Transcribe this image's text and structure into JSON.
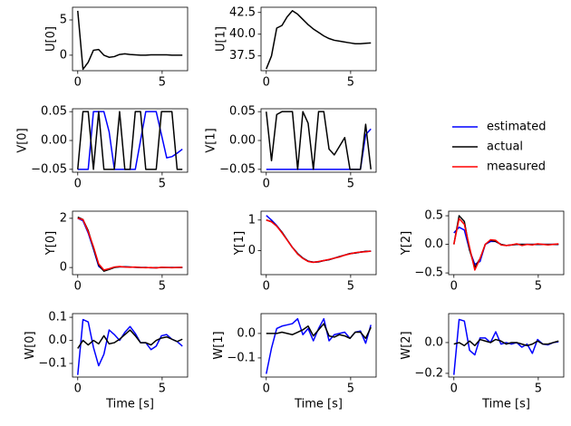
{
  "chart_data": [
    {
      "type": "line",
      "ylabel": "U[0]",
      "x": [
        0,
        0.31,
        0.62,
        0.93,
        1.24,
        1.55,
        1.86,
        2.17,
        2.48,
        2.79,
        3.1,
        3.41,
        3.72,
        4.03,
        4.34,
        4.65,
        4.96,
        5.27,
        5.58,
        5.89,
        6.2
      ],
      "xlim": [
        -0.31,
        6.51
      ],
      "xticks": [
        0,
        5
      ],
      "ylim": [
        -2.2,
        6.8
      ],
      "yticks": [
        0,
        5
      ],
      "series": [
        {
          "name": "actual",
          "color": "#000000",
          "values": [
            6.3,
            -2.0,
            -1.0,
            0.7,
            0.8,
            0.0,
            -0.3,
            -0.2,
            0.1,
            0.2,
            0.1,
            0.05,
            0,
            0,
            0.05,
            0.05,
            0.05,
            0.05,
            0,
            0,
            0
          ]
        }
      ]
    },
    {
      "type": "line",
      "ylabel": "U[1]",
      "x": [
        0,
        0.31,
        0.62,
        0.93,
        1.24,
        1.55,
        1.86,
        2.17,
        2.48,
        2.79,
        3.1,
        3.41,
        3.72,
        4.03,
        4.34,
        4.65,
        4.96,
        5.27,
        5.58,
        5.89,
        6.2
      ],
      "xlim": [
        -0.31,
        6.51
      ],
      "xticks": [
        0,
        5
      ],
      "ylim": [
        35.8,
        43.1
      ],
      "yticks": [
        37.5,
        {
          "value": 40,
          "label": "40.0"
        },
        42.5
      ],
      "series": [
        {
          "name": "actual",
          "color": "#000000",
          "values": [
            36.0,
            37.5,
            40.7,
            41.0,
            42.0,
            42.7,
            42.3,
            41.7,
            41.1,
            40.6,
            40.2,
            39.8,
            39.5,
            39.3,
            39.2,
            39.1,
            39.0,
            38.9,
            38.9,
            38.95,
            39.0
          ]
        }
      ]
    },
    {
      "type": "line",
      "ylabel": "V[0]",
      "x": [
        0,
        0.31,
        0.62,
        0.93,
        1.24,
        1.55,
        1.86,
        2.17,
        2.48,
        2.79,
        3.1,
        3.41,
        3.72,
        4.03,
        4.34,
        4.65,
        4.96,
        5.27,
        5.58,
        5.89,
        6.2
      ],
      "xlim": [
        -0.31,
        6.51
      ],
      "xticks": [
        0,
        5
      ],
      "ylim": [
        -0.055,
        0.055
      ],
      "yticks": [
        {
          "value": -0.05,
          "label": "−0.05"
        },
        {
          "value": 0,
          "label": "0.00"
        },
        {
          "value": 0.05,
          "label": "0.05"
        }
      ],
      "series": [
        {
          "name": "estimated",
          "color": "#0000ff",
          "values": [
            -0.05,
            -0.05,
            -0.05,
            0.05,
            0.05,
            0.05,
            0.015,
            -0.05,
            -0.05,
            -0.05,
            -0.05,
            -0.05,
            0.0,
            0.05,
            0.05,
            0.05,
            0.01,
            -0.03,
            -0.028,
            -0.022,
            -0.015
          ]
        },
        {
          "name": "actual",
          "color": "#000000",
          "values": [
            -0.05,
            0.05,
            0.05,
            -0.05,
            0.05,
            -0.05,
            -0.05,
            -0.05,
            0.05,
            -0.05,
            -0.05,
            0.05,
            0.05,
            -0.05,
            -0.05,
            -0.05,
            0.05,
            0.05,
            0.05,
            -0.05,
            -0.05
          ]
        }
      ]
    },
    {
      "type": "line",
      "ylabel": "V[1]",
      "x": [
        0,
        0.31,
        0.62,
        0.93,
        1.24,
        1.55,
        1.86,
        2.17,
        2.48,
        2.79,
        3.1,
        3.41,
        3.72,
        4.03,
        4.34,
        4.65,
        4.96,
        5.27,
        5.58,
        5.89,
        6.2
      ],
      "xlim": [
        -0.31,
        6.51
      ],
      "xticks": [
        0,
        5
      ],
      "ylim": [
        -0.055,
        0.055
      ],
      "yticks": [
        {
          "value": -0.05,
          "label": "−0.05"
        },
        {
          "value": 0,
          "label": "0.00"
        },
        {
          "value": 0.05,
          "label": "0.05"
        }
      ],
      "series": [
        {
          "name": "estimated",
          "color": "#0000ff",
          "values": [
            -0.05,
            -0.05,
            -0.05,
            -0.05,
            -0.05,
            -0.05,
            -0.05,
            -0.05,
            -0.05,
            -0.05,
            -0.05,
            -0.05,
            -0.05,
            -0.05,
            -0.05,
            -0.05,
            -0.05,
            -0.05,
            -0.05,
            0.01,
            0.02
          ]
        },
        {
          "name": "actual",
          "color": "#000000",
          "values": [
            0.05,
            -0.035,
            0.045,
            0.05,
            0.05,
            0.05,
            -0.05,
            0.05,
            0.03,
            -0.05,
            0.05,
            0.05,
            -0.015,
            -0.025,
            -0.01,
            0.005,
            -0.05,
            -0.05,
            -0.05,
            0.028,
            -0.05
          ]
        }
      ]
    },
    {
      "type": "line",
      "ylabel": "Y[0]",
      "x": [
        0,
        0.31,
        0.62,
        0.93,
        1.24,
        1.55,
        1.86,
        2.17,
        2.48,
        2.79,
        3.1,
        3.41,
        3.72,
        4.03,
        4.34,
        4.65,
        4.96,
        5.27,
        5.58,
        5.89,
        6.2
      ],
      "xlim": [
        -0.31,
        6.51
      ],
      "xticks": [
        0,
        5
      ],
      "ylim": [
        -0.29,
        2.29
      ],
      "yticks": [
        0,
        2
      ],
      "series": [
        {
          "name": "estimated",
          "color": "#0000ff",
          "values": [
            2.0,
            1.9,
            1.4,
            0.75,
            0.05,
            -0.12,
            -0.06,
            0.01,
            0.03,
            0.03,
            0.02,
            0.01,
            0,
            0,
            -0.01,
            -0.01,
            0,
            0,
            0,
            0,
            0
          ]
        },
        {
          "name": "actual",
          "color": "#000000",
          "values": [
            2.05,
            1.95,
            1.5,
            0.8,
            0.1,
            -0.15,
            -0.08,
            0.0,
            0.03,
            0.03,
            0.02,
            0.01,
            0,
            0,
            -0.01,
            -0.01,
            0,
            0,
            0,
            0,
            0
          ]
        },
        {
          "name": "measured",
          "color": "#ff0000",
          "values": [
            2.0,
            1.95,
            1.45,
            0.85,
            0.15,
            -0.1,
            -0.05,
            0.02,
            0.04,
            0.02,
            0.01,
            0.02,
            0,
            -0.01,
            0,
            -0.02,
            0.01,
            0,
            -0.01,
            0,
            0.01
          ]
        }
      ]
    },
    {
      "type": "line",
      "ylabel": "Y[1]",
      "x": [
        0,
        0.31,
        0.62,
        0.93,
        1.24,
        1.55,
        1.86,
        2.17,
        2.48,
        2.79,
        3.1,
        3.41,
        3.72,
        4.03,
        4.34,
        4.65,
        4.96,
        5.27,
        5.58,
        5.89,
        6.2
      ],
      "xlim": [
        -0.31,
        6.51
      ],
      "xticks": [
        0,
        5
      ],
      "ylim": [
        -0.79,
        1.29
      ],
      "yticks": [
        0,
        1
      ],
      "series": [
        {
          "name": "estimated",
          "color": "#0000ff",
          "values": [
            1.15,
            1.0,
            0.82,
            0.6,
            0.35,
            0.1,
            -0.1,
            -0.25,
            -0.35,
            -0.38,
            -0.37,
            -0.33,
            -0.3,
            -0.25,
            -0.2,
            -0.15,
            -0.1,
            -0.08,
            -0.05,
            -0.03,
            -0.02
          ]
        },
        {
          "name": "actual",
          "color": "#000000",
          "values": [
            1.0,
            0.95,
            0.8,
            0.6,
            0.35,
            0.1,
            -0.1,
            -0.25,
            -0.35,
            -0.38,
            -0.37,
            -0.33,
            -0.3,
            -0.25,
            -0.2,
            -0.15,
            -0.1,
            -0.08,
            -0.05,
            -0.03,
            -0.02
          ]
        },
        {
          "name": "measured",
          "color": "#ff0000",
          "values": [
            1.0,
            0.94,
            0.8,
            0.58,
            0.34,
            0.1,
            -0.12,
            -0.26,
            -0.36,
            -0.39,
            -0.36,
            -0.33,
            -0.29,
            -0.25,
            -0.21,
            -0.15,
            -0.11,
            -0.07,
            -0.05,
            -0.04,
            -0.02
          ]
        }
      ]
    },
    {
      "type": "line",
      "ylabel": "Y[2]",
      "x": [
        0,
        0.31,
        0.62,
        0.93,
        1.24,
        1.55,
        1.86,
        2.17,
        2.48,
        2.79,
        3.1,
        3.41,
        3.72,
        4.03,
        4.34,
        4.65,
        4.96,
        5.27,
        5.58,
        5.89,
        6.2
      ],
      "xlim": [
        -0.31,
        6.51
      ],
      "xticks": [
        0,
        5
      ],
      "ylim": [
        -0.53,
        0.58
      ],
      "yticks": [
        {
          "value": -0.5,
          "label": "−0.5"
        },
        {
          "value": 0,
          "label": "0.0"
        },
        0.5
      ],
      "series": [
        {
          "name": "estimated",
          "color": "#0000ff",
          "values": [
            0.2,
            0.3,
            0.25,
            -0.1,
            -0.35,
            -0.3,
            0.0,
            0.05,
            0.05,
            0.0,
            -0.02,
            -0.01,
            0,
            0,
            0,
            0,
            0,
            0,
            0,
            0,
            0
          ]
        },
        {
          "name": "actual",
          "color": "#000000",
          "values": [
            0,
            0.5,
            0.4,
            -0.1,
            -0.4,
            -0.25,
            0.0,
            0.07,
            0.05,
            0.0,
            -0.02,
            -0.01,
            0,
            0,
            0,
            0,
            0,
            0,
            0,
            0,
            0
          ]
        },
        {
          "name": "measured",
          "color": "#ff0000",
          "values": [
            0,
            0.45,
            0.35,
            -0.05,
            -0.45,
            -0.25,
            0.0,
            0.08,
            0.07,
            -0.01,
            -0.02,
            -0.01,
            0.01,
            -0.02,
            0,
            -0.01,
            0.01,
            0,
            -0.01,
            0,
            0.01
          ]
        }
      ]
    },
    {
      "type": "line",
      "ylabel": "W[0]",
      "xlabel": "Time [s]",
      "x": [
        0,
        0.31,
        0.62,
        0.93,
        1.24,
        1.55,
        1.86,
        2.17,
        2.48,
        2.79,
        3.1,
        3.41,
        3.72,
        4.03,
        4.34,
        4.65,
        4.96,
        5.27,
        5.58,
        5.89,
        6.2
      ],
      "xlim": [
        -0.31,
        6.51
      ],
      "xticks": [
        0,
        5
      ],
      "ylim": [
        -0.159,
        0.116
      ],
      "yticks": [
        {
          "value": -0.1,
          "label": "−0.1"
        },
        {
          "value": 0,
          "label": "0.0"
        },
        0.1
      ],
      "series": [
        {
          "name": "estimated",
          "color": "#0000ff",
          "values": [
            -0.15,
            0.09,
            0.08,
            -0.03,
            -0.11,
            -0.06,
            0.045,
            0.025,
            0.0,
            0.035,
            0.06,
            0.03,
            -0.01,
            -0.01,
            -0.04,
            -0.025,
            0.02,
            0.025,
            0.005,
            -0.005,
            -0.025
          ]
        },
        {
          "name": "actual",
          "color": "#000000",
          "values": [
            -0.035,
            0.0,
            -0.02,
            0.0,
            -0.015,
            0.02,
            -0.015,
            -0.01,
            0.005,
            0.025,
            0.045,
            0.02,
            -0.01,
            -0.01,
            -0.02,
            0.0,
            0.01,
            0.015,
            0.005,
            -0.005,
            0.005
          ]
        }
      ]
    },
    {
      "type": "line",
      "ylabel": "W[1]",
      "xlabel": "Time [s]",
      "x": [
        0,
        0.31,
        0.62,
        0.93,
        1.24,
        1.55,
        1.86,
        2.17,
        2.48,
        2.79,
        3.1,
        3.41,
        3.72,
        4.03,
        4.34,
        4.65,
        4.96,
        5.27,
        5.58,
        5.89,
        6.2
      ],
      "xlim": [
        -0.31,
        6.51
      ],
      "xticks": [
        0,
        5
      ],
      "ylim": [
        -0.178,
        0.081
      ],
      "yticks": [
        {
          "value": -0.1,
          "label": "−0.1"
        },
        {
          "value": 0,
          "label": "0.0"
        }
      ],
      "series": [
        {
          "name": "estimated",
          "color": "#0000ff",
          "values": [
            -0.165,
            -0.06,
            0.02,
            0.03,
            0.035,
            0.04,
            0.06,
            -0.005,
            0.02,
            -0.03,
            0.02,
            0.06,
            -0.03,
            -0.005,
            0.0,
            0.005,
            -0.02,
            0.005,
            0.01,
            -0.04,
            0.035
          ]
        },
        {
          "name": "actual",
          "color": "#000000",
          "values": [
            0.0,
            0.0,
            0.0,
            0.005,
            0.0,
            -0.005,
            0.005,
            0.015,
            0.03,
            -0.01,
            0.015,
            0.04,
            -0.01,
            -0.015,
            -0.005,
            -0.01,
            -0.02,
            0.005,
            0.005,
            -0.02,
            0.025
          ]
        }
      ]
    },
    {
      "type": "line",
      "ylabel": "W[2]",
      "xlabel": "Time [s]",
      "x": [
        0,
        0.31,
        0.62,
        0.93,
        1.24,
        1.55,
        1.86,
        2.17,
        2.48,
        2.79,
        3.1,
        3.41,
        3.72,
        4.03,
        4.34,
        4.65,
        4.96,
        5.27,
        5.58,
        5.89,
        6.2
      ],
      "xlim": [
        -0.31,
        6.51
      ],
      "xticks": [
        0,
        5
      ],
      "ylim": [
        -0.224,
        0.188
      ],
      "yticks": [
        {
          "value": -0.2,
          "label": "−0.2"
        },
        {
          "value": 0,
          "label": "0.0"
        }
      ],
      "series": [
        {
          "name": "estimated",
          "color": "#0000ff",
          "values": [
            -0.21,
            0.15,
            0.14,
            -0.05,
            -0.08,
            0.03,
            0.03,
            0.0,
            0.07,
            -0.01,
            0.0,
            -0.01,
            0.0,
            -0.03,
            -0.01,
            -0.07,
            0.02,
            -0.01,
            -0.015,
            0.0,
            0.005
          ]
        },
        {
          "name": "actual",
          "color": "#000000",
          "values": [
            -0.01,
            0.0,
            -0.02,
            0.01,
            -0.02,
            0.02,
            0.01,
            0.0,
            0.02,
            0.01,
            -0.01,
            0.0,
            0.0,
            -0.01,
            -0.02,
            -0.01,
            0.01,
            -0.01,
            -0.01,
            0.0,
            0.01
          ]
        }
      ]
    }
  ]
}
